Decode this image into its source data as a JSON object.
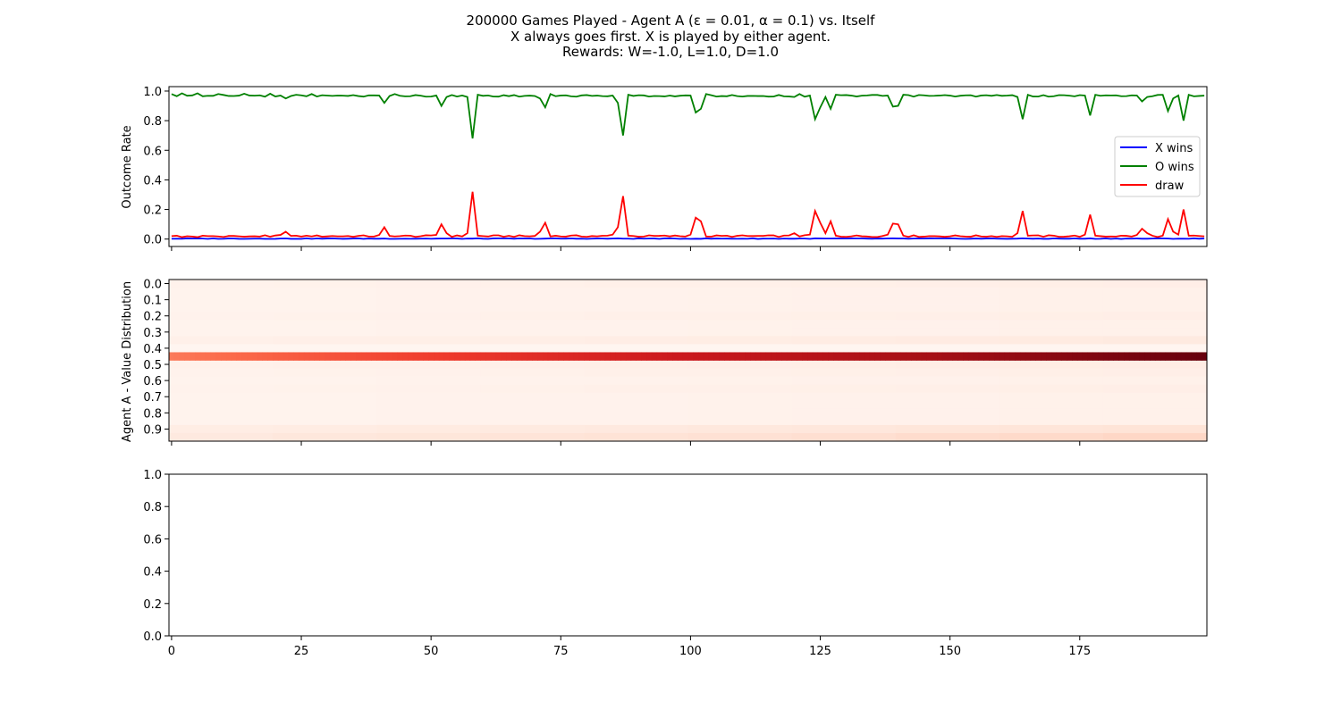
{
  "figure": {
    "title_lines": [
      "200000 Games Played - Agent A (ε = 0.01, α = 0.1) vs. Itself",
      "X always goes first.  X is played by either agent.",
      "Rewards: W=-1.0, L=1.0, D=1.0"
    ]
  },
  "chart_data": [
    {
      "type": "line",
      "ylabel": "Outcome Rate",
      "xlim": [
        -0.5,
        199.5
      ],
      "ylim": [
        -0.05,
        1.03
      ],
      "yticks": [
        0.0,
        0.2,
        0.4,
        0.6,
        0.8,
        1.0
      ],
      "yticklabels": [
        "0.0",
        "0.2",
        "0.4",
        "0.6",
        "0.8",
        "1.0"
      ],
      "legend": "right",
      "spike_points": [
        [
          0,
          0.98,
          0.02
        ],
        [
          2,
          0.985,
          0.013
        ],
        [
          5,
          0.985,
          0.013
        ],
        [
          9,
          0.98,
          0.018
        ],
        [
          14,
          0.982,
          0.016
        ],
        [
          19,
          0.982,
          0.016
        ],
        [
          21,
          0.97,
          0.028
        ],
        [
          22,
          0.95,
          0.05
        ],
        [
          24,
          0.975,
          0.023
        ],
        [
          27,
          0.98,
          0.018
        ],
        [
          40,
          0.97,
          0.028
        ],
        [
          41,
          0.92,
          0.08
        ],
        [
          43,
          0.98,
          0.018
        ],
        [
          51,
          0.97,
          0.028
        ],
        [
          52,
          0.9,
          0.1
        ],
        [
          53,
          0.96,
          0.04
        ],
        [
          57,
          0.96,
          0.04
        ],
        [
          58,
          0.68,
          0.32
        ],
        [
          59,
          0.975,
          0.023
        ],
        [
          71,
          0.95,
          0.05
        ],
        [
          72,
          0.89,
          0.11
        ],
        [
          73,
          0.98,
          0.018
        ],
        [
          85,
          0.97,
          0.03
        ],
        [
          86,
          0.92,
          0.08
        ],
        [
          87,
          0.7,
          0.29
        ],
        [
          88,
          0.975,
          0.023
        ],
        [
          100,
          0.97,
          0.03
        ],
        [
          101,
          0.855,
          0.145
        ],
        [
          102,
          0.88,
          0.12
        ],
        [
          103,
          0.98,
          0.018
        ],
        [
          120,
          0.96,
          0.04
        ],
        [
          121,
          0.98,
          0.018
        ],
        [
          123,
          0.97,
          0.03
        ],
        [
          124,
          0.81,
          0.19
        ],
        [
          125,
          0.89,
          0.11
        ],
        [
          126,
          0.96,
          0.04
        ],
        [
          127,
          0.88,
          0.12
        ],
        [
          128,
          0.975,
          0.023
        ],
        [
          138,
          0.97,
          0.03
        ],
        [
          139,
          0.895,
          0.105
        ],
        [
          140,
          0.9,
          0.1
        ],
        [
          141,
          0.975,
          0.023
        ],
        [
          163,
          0.96,
          0.04
        ],
        [
          164,
          0.81,
          0.19
        ],
        [
          165,
          0.975,
          0.023
        ],
        [
          176,
          0.97,
          0.03
        ],
        [
          177,
          0.835,
          0.165
        ],
        [
          178,
          0.975,
          0.023
        ],
        [
          186,
          0.97,
          0.028
        ],
        [
          187,
          0.93,
          0.07
        ],
        [
          188,
          0.96,
          0.04
        ],
        [
          191,
          0.975,
          0.023
        ],
        [
          192,
          0.865,
          0.135
        ],
        [
          193,
          0.95,
          0.05
        ],
        [
          194,
          0.97,
          0.03
        ],
        [
          195,
          0.8,
          0.2
        ],
        [
          196,
          0.975,
          0.023
        ]
      ],
      "series": [
        {
          "name": "X wins",
          "color": "#0000ff",
          "base": 0.003
        },
        {
          "name": "O wins",
          "color": "#008000",
          "base": 0.98
        },
        {
          "name": "draw",
          "color": "#ff0000",
          "base": 0.018
        }
      ],
      "x_count": 200
    },
    {
      "type": "heatmap",
      "ylabel": "Agent A - Value Distribution",
      "yticklabels": [
        "0.0",
        "0.1",
        "0.2",
        "0.3",
        "0.4",
        "0.5",
        "0.6",
        "0.7",
        "0.8",
        "0.9"
      ],
      "colormap": "Reds",
      "rows": 20,
      "x_count": 200,
      "row_intensity": [
        0.03,
        0.02,
        0.02,
        0.02,
        0.03,
        0.02,
        0.02,
        0.05,
        0.0,
        0.04,
        0.04,
        0.03,
        0.02,
        0.03,
        0.02,
        0.02,
        0.02,
        0.02,
        0.08,
        0.12
      ],
      "hot_row": 9,
      "hot_row_range": [
        0.45,
        1.0
      ]
    },
    {
      "type": "line",
      "ylim": [
        0.0,
        1.0
      ],
      "xlim": [
        -0.5,
        199.5
      ],
      "yticks": [
        0.0,
        0.2,
        0.4,
        0.6,
        0.8,
        1.0
      ],
      "yticklabels": [
        "0.0",
        "0.2",
        "0.4",
        "0.6",
        "0.8",
        "1.0"
      ],
      "xticks": [
        0,
        25,
        50,
        75,
        100,
        125,
        150,
        175
      ],
      "xticklabels": [
        "0",
        "25",
        "50",
        "75",
        "100",
        "125",
        "150",
        "175"
      ],
      "series": []
    }
  ]
}
